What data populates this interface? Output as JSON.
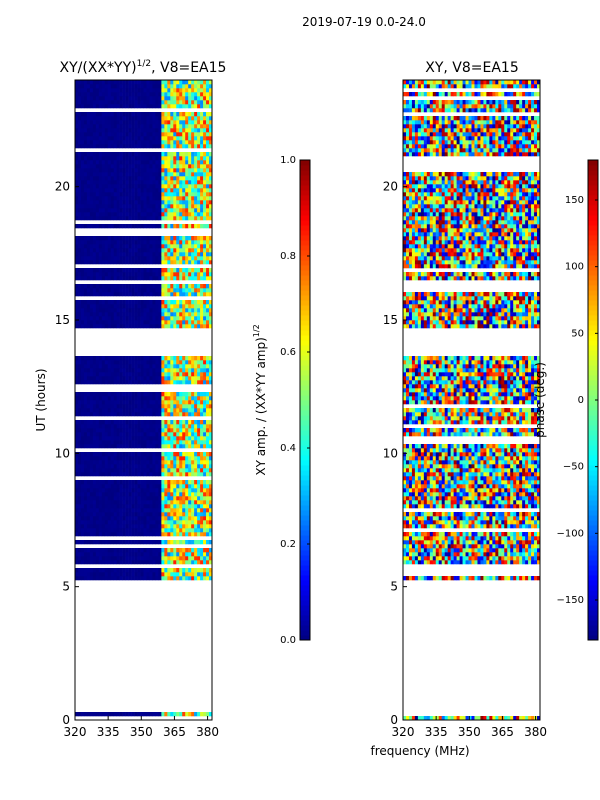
{
  "suptitle": "2019-07-19 0.0-24.0",
  "xlabel": "frequency (MHz)",
  "colors": {
    "jet": [
      "#00007f",
      "#0000ff",
      "#007fff",
      "#00ffff",
      "#7fff7f",
      "#ffff00",
      "#ff7f00",
      "#ff0000",
      "#7f0000"
    ],
    "axis": "#000000",
    "background": "#ffffff",
    "gap": "#ffffff"
  },
  "chart_data": [
    {
      "type": "heatmap",
      "title_main": "XY/(XX*YY)",
      "title_sup": "1/2",
      "title_rest": ", V8=EA15",
      "xlim": [
        320,
        382
      ],
      "ylim": [
        0,
        24
      ],
      "xticks": [
        320,
        335,
        350,
        365,
        380
      ],
      "xtick_labels": [
        "320",
        "335",
        "350",
        "365",
        "380"
      ],
      "yticks": [
        0,
        5,
        10,
        15,
        20
      ],
      "ytick_labels": [
        "0",
        "5",
        "10",
        "15",
        "20"
      ],
      "ylabel": "UT (hours)",
      "data_ranges_hours": [
        [
          0.0,
          0.3
        ],
        [
          5.3,
          13.7
        ],
        [
          14.7,
          24.0
        ]
      ],
      "notes": "Amplitude mostly near 0 below 359 MHz; enhanced 0.3-0.9 at 359-380 MHz band",
      "colorbar": {
        "label_main": "XY amp. / (XX*YY amp)",
        "label_sup": "1/2",
        "vmin": 0.0,
        "vmax": 1.0,
        "ticks": [
          "0.0",
          "0.2",
          "0.4",
          "0.6",
          "0.8",
          "1.0"
        ],
        "tick_values": [
          0.0,
          0.2,
          0.4,
          0.6,
          0.8,
          1.0
        ]
      }
    },
    {
      "type": "heatmap",
      "title": "XY, V8=EA15",
      "xlim": [
        320,
        382
      ],
      "ylim": [
        0,
        24
      ],
      "xticks": [
        320,
        335,
        350,
        365,
        380
      ],
      "xtick_labels": [
        "320",
        "335",
        "350",
        "365",
        "380"
      ],
      "yticks": [
        0,
        5,
        10,
        15,
        20
      ],
      "ytick_labels": [
        "0",
        "5",
        "10",
        "15",
        "20"
      ],
      "data_ranges_hours": [
        [
          0.0,
          0.3
        ],
        [
          5.3,
          13.7
        ],
        [
          14.7,
          24.0
        ]
      ],
      "notes": "Phase in degrees, noisy full-range values across band",
      "colorbar": {
        "label": "phase (deg.)",
        "vmin": -180,
        "vmax": 180,
        "ticks": [
          "−150",
          "−100",
          "−50",
          "0",
          "50",
          "100",
          "150"
        ],
        "tick_values": [
          -150,
          -100,
          -50,
          0,
          50,
          100,
          150
        ]
      }
    }
  ]
}
